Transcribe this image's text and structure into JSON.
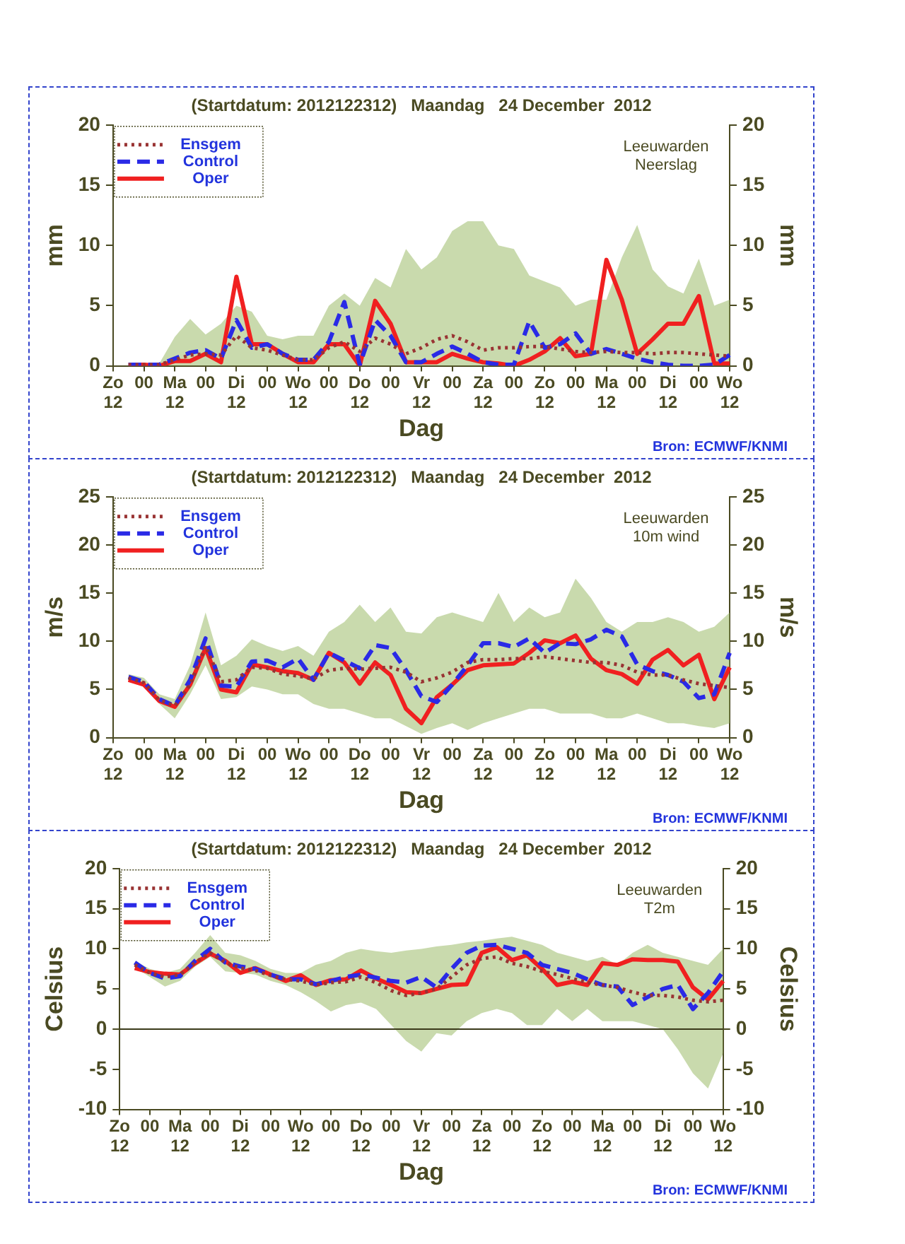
{
  "chart_data": [
    {
      "type": "line",
      "title": "(Startdatum: 2012122312)   Maandag   24 December  2012",
      "xlabel": "Dag",
      "ylabel": "mm",
      "y2label": "mm",
      "annotations": [
        "Leeuwarden",
        "Neerslag",
        "Bron: ECMWF/KNMI"
      ],
      "categories": [
        "Zo\n12",
        null,
        "00",
        null,
        "Ma\n12",
        null,
        "00",
        null,
        "Di\n12",
        null,
        "00",
        null,
        "Wo\n12",
        null,
        "00",
        null,
        "Do\n12",
        null,
        "00",
        null,
        "Vr\n12",
        null,
        "00",
        null,
        "Za\n12",
        null,
        "00",
        null,
        "Zo\n12",
        null,
        "00",
        null,
        "Ma\n12",
        null,
        "00",
        null,
        "Di\n12",
        null,
        "00",
        null,
        "Wo\n12"
      ],
      "ylim": [
        0,
        20
      ],
      "yticks": [
        0,
        5,
        10,
        15,
        20
      ],
      "y2lim": [
        0,
        20
      ],
      "y2ticks": [
        0,
        5,
        10,
        15,
        20
      ],
      "legend": "top left",
      "marker": "none",
      "series": [
        {
          "name": "Ensgem",
          "color": "#993333",
          "line_style": "dotted",
          "values": [
            null,
            0.1,
            0.1,
            0.1,
            0.5,
            0.9,
            1.0,
            0.9,
            2.5,
            1.5,
            1.3,
            0.9,
            0.5,
            0.5,
            1.5,
            2.0,
            1.2,
            2.3,
            1.8,
            1.0,
            1.5,
            2.2,
            2.5,
            2.0,
            1.3,
            1.5,
            1.5,
            1.6,
            1.6,
            1.4,
            1.2,
            1.1,
            1.2,
            1.1,
            1.1,
            1.0,
            1.1,
            1.1,
            1.0,
            0.9,
            0.8
          ],
          "lower": [
            null,
            0,
            0,
            0,
            0,
            0,
            0,
            0,
            0,
            0,
            0,
            0,
            0,
            0,
            0,
            0,
            0,
            0,
            0,
            0,
            0,
            0,
            0,
            0,
            0,
            0,
            0,
            0,
            0,
            0,
            0,
            0,
            0,
            0,
            0,
            0,
            0,
            0,
            0,
            0,
            0
          ],
          "upper": [
            null,
            0.2,
            0.2,
            0.2,
            2.4,
            3.9,
            2.6,
            3.5,
            5.0,
            4.5,
            2.5,
            2.2,
            2.5,
            2.5,
            5.0,
            6.0,
            5.0,
            7.3,
            6.5,
            9.7,
            8.0,
            9.0,
            11.2,
            12.0,
            12.0,
            10.0,
            9.7,
            7.5,
            7.0,
            6.5,
            5.0,
            5.5,
            5.5,
            9.0,
            11.7,
            8.0,
            6.6,
            6.0,
            8.9,
            5.0,
            5.5
          ]
        },
        {
          "name": "Control",
          "color": "#2a2ae6",
          "line_style": "dashed",
          "values": [
            null,
            0.1,
            0.1,
            0.1,
            0.6,
            1.1,
            1.3,
            0.6,
            3.8,
            1.5,
            1.8,
            1.0,
            0.5,
            0.5,
            2.0,
            5.3,
            0.1,
            3.8,
            2.5,
            0.3,
            0.3,
            1.0,
            1.6,
            1.0,
            0.3,
            0.1,
            0.1,
            3.7,
            1.5,
            1.8,
            2.7,
            1.0,
            1.4,
            1.0,
            0.6,
            0.3,
            0.1,
            0,
            0,
            0.1,
            0.9
          ]
        },
        {
          "name": "Oper",
          "color": "#f02020",
          "line_style": "solid",
          "values": [
            null,
            0.1,
            0.1,
            0,
            0.4,
            0.4,
            1.0,
            0.3,
            7.4,
            1.8,
            1.8,
            1.0,
            0.3,
            0.3,
            1.8,
            1.8,
            0,
            5.4,
            3.5,
            0.3,
            0.3,
            0.3,
            1.0,
            0.6,
            0.3,
            0.2,
            0,
            0.5,
            1.2,
            2.3,
            0.8,
            1.0,
            8.8,
            5.5,
            1.0,
            2.2,
            3.5,
            3.5,
            5.8,
            0.2,
            0.2
          ]
        }
      ]
    },
    {
      "type": "line",
      "title": "(Startdatum: 2012122312)   Maandag   24 December  2012",
      "xlabel": "Dag",
      "ylabel": "m/s",
      "y2label": "m/s",
      "annotations": [
        "Leeuwarden",
        "10m wind",
        "Bron: ECMWF/KNMI"
      ],
      "categories": [
        "Zo\n12",
        null,
        "00",
        null,
        "Ma\n12",
        null,
        "00",
        null,
        "Di\n12",
        null,
        "00",
        null,
        "Wo\n12",
        null,
        "00",
        null,
        "Do\n12",
        null,
        "00",
        null,
        "Vr\n12",
        null,
        "00",
        null,
        "Za\n12",
        null,
        "00",
        null,
        "Zo\n12",
        null,
        "00",
        null,
        "Ma\n12",
        null,
        "00",
        null,
        "Di\n12",
        null,
        "00",
        null,
        "Wo\n12"
      ],
      "ylim": [
        0,
        25
      ],
      "yticks": [
        0,
        5,
        10,
        15,
        20,
        25
      ],
      "y2lim": [
        0,
        25
      ],
      "y2ticks": [
        0,
        5,
        10,
        15,
        20,
        25
      ],
      "legend": "top left",
      "marker": "none",
      "series": [
        {
          "name": "Ensgem",
          "color": "#993333",
          "line_style": "dotted",
          "values": [
            null,
            6.2,
            5.7,
            3.9,
            3.3,
            5.5,
            9.5,
            5.8,
            6.0,
            7.3,
            7.2,
            6.6,
            6.4,
            6.1,
            7.0,
            7.2,
            7.1,
            7.2,
            7.3,
            6.8,
            5.8,
            6.2,
            6.8,
            7.8,
            8.1,
            8.1,
            8.2,
            8.2,
            8.4,
            8.2,
            8.0,
            7.8,
            7.8,
            7.5,
            6.8,
            6.5,
            6.5,
            6.0,
            5.6,
            5.4,
            5.2
          ],
          "lower": [
            null,
            5.8,
            5.3,
            3.5,
            2.0,
            4.5,
            7.5,
            4.0,
            4.2,
            5.3,
            5.0,
            4.5,
            4.5,
            3.5,
            3.0,
            3.0,
            2.5,
            2.0,
            2.0,
            1.2,
            0.4,
            1.0,
            1.5,
            0.8,
            1.5,
            2.0,
            2.5,
            3.0,
            3.0,
            2.5,
            2.5,
            2.5,
            2.0,
            2.0,
            2.5,
            2.0,
            1.5,
            1.5,
            1.2,
            1.0,
            1.5
          ],
          "upper": [
            null,
            6.6,
            6.2,
            4.5,
            4.0,
            7.5,
            13.0,
            7.5,
            8.5,
            10.2,
            9.5,
            9.0,
            9.5,
            8.5,
            11.0,
            12.0,
            13.8,
            12.0,
            13.5,
            11.0,
            10.8,
            12.5,
            13.0,
            12.5,
            12.0,
            15.0,
            12.0,
            13.5,
            12.5,
            13.0,
            16.5,
            14.5,
            12.0,
            11.0,
            12.0,
            12.0,
            12.5,
            12.0,
            11.0,
            11.5,
            13.0
          ]
        },
        {
          "name": "Control",
          "color": "#2a2ae6",
          "line_style": "dashed",
          "values": [
            null,
            6.3,
            5.8,
            4.0,
            3.3,
            6.0,
            10.3,
            5.4,
            5.3,
            7.9,
            8.0,
            7.3,
            8.2,
            6.0,
            8.8,
            8.0,
            7.2,
            9.6,
            9.3,
            7.0,
            4.3,
            3.7,
            5.5,
            7.5,
            9.8,
            9.8,
            9.4,
            10.3,
            8.8,
            9.8,
            9.7,
            10.2,
            11.2,
            10.5,
            7.6,
            6.9,
            6.5,
            5.8,
            4.1,
            4.5,
            8.8
          ]
        },
        {
          "name": "Oper",
          "color": "#f02020",
          "line_style": "solid",
          "values": [
            null,
            6.0,
            5.5,
            3.8,
            3.2,
            5.5,
            9.3,
            5.0,
            4.7,
            7.6,
            7.3,
            6.9,
            6.7,
            6.0,
            8.8,
            7.8,
            5.6,
            7.8,
            6.5,
            3.0,
            1.5,
            4.2,
            5.5,
            7.0,
            7.5,
            7.6,
            7.7,
            8.8,
            10.1,
            9.8,
            10.6,
            8.2,
            7.0,
            6.6,
            5.6,
            8.1,
            9.1,
            7.5,
            8.6,
            4.0,
            7.3
          ]
        }
      ]
    },
    {
      "type": "line",
      "title": "(Startdatum: 2012122312)   Maandag   24 December  2012",
      "xlabel": "Dag",
      "ylabel": "Celsius",
      "y2label": "Celsius",
      "annotations": [
        "Leeuwarden",
        "T2m",
        "Bron: ECMWF/KNMI"
      ],
      "categories": [
        "Zo\n12",
        null,
        "00",
        null,
        "Ma\n12",
        null,
        "00",
        null,
        "Di\n12",
        null,
        "00",
        null,
        "Wo\n12",
        null,
        "00",
        null,
        "Do\n12",
        null,
        "00",
        null,
        "Vr\n12",
        null,
        "00",
        null,
        "Za\n12",
        null,
        "00",
        null,
        "Zo\n12",
        null,
        "00",
        null,
        "Ma\n12",
        null,
        "00",
        null,
        "Di\n12",
        null,
        "00",
        null,
        "Wo\n12"
      ],
      "ylim": [
        -10,
        20
      ],
      "yticks": [
        -10,
        -5,
        0,
        5,
        10,
        15,
        20
      ],
      "y2lim": [
        -10,
        20
      ],
      "y2ticks": [
        -10,
        -5,
        0,
        5,
        10,
        15,
        20
      ],
      "ref_lines": [
        {
          "axis": "y",
          "value": 0,
          "label": null,
          "color": "#3a3a1a"
        }
      ],
      "legend": "top left",
      "marker": "none",
      "series": [
        {
          "name": "Ensgem",
          "color": "#993333",
          "line_style": "dotted",
          "values": [
            null,
            8.0,
            7.0,
            6.5,
            6.8,
            8.3,
            9.5,
            8.3,
            7.6,
            7.3,
            6.7,
            6.2,
            6.0,
            5.5,
            5.8,
            5.9,
            6.5,
            5.8,
            4.8,
            4.2,
            4.5,
            5.0,
            6.5,
            8.0,
            8.8,
            9.0,
            8.2,
            7.8,
            7.2,
            6.8,
            6.3,
            5.8,
            5.5,
            5.2,
            4.6,
            4.2,
            4.2,
            4.0,
            3.6,
            3.4,
            3.6
          ],
          "lower": [
            null,
            7.7,
            6.5,
            5.3,
            6.0,
            7.8,
            9.0,
            7.2,
            7.0,
            6.8,
            6.0,
            5.5,
            4.6,
            3.5,
            2.2,
            3.0,
            3.3,
            2.5,
            0.5,
            -1.5,
            -2.8,
            -0.5,
            -0.8,
            1.0,
            2.0,
            2.5,
            2.0,
            0.5,
            0.5,
            2.5,
            1.0,
            2.5,
            1.0,
            1.0,
            1.0,
            0.5,
            0.0,
            -2.5,
            -5.5,
            -7.4,
            -3.0
          ],
          "upper": [
            null,
            8.5,
            7.5,
            7.0,
            7.5,
            9.5,
            11.7,
            9.5,
            9.2,
            8.5,
            7.5,
            7.0,
            7.0,
            8.0,
            8.5,
            9.5,
            10.0,
            9.7,
            9.5,
            9.8,
            10.0,
            10.3,
            10.5,
            10.8,
            11.0,
            11.3,
            11.5,
            11.0,
            10.5,
            9.5,
            9.0,
            8.5,
            9.0,
            8.0,
            9.5,
            10.5,
            9.5,
            9.0,
            8.5,
            8.0,
            10.0
          ]
        },
        {
          "name": "Control",
          "color": "#2a2ae6",
          "line_style": "dashed",
          "values": [
            null,
            8.3,
            7.0,
            6.3,
            6.6,
            8.5,
            10.0,
            8.3,
            7.8,
            7.5,
            6.8,
            6.2,
            6.2,
            5.6,
            6.0,
            6.5,
            6.8,
            6.4,
            6.0,
            5.8,
            6.5,
            5.2,
            7.5,
            9.5,
            10.4,
            10.5,
            10.0,
            9.5,
            8.0,
            7.5,
            7.0,
            6.2,
            5.5,
            5.3,
            3.0,
            4.0,
            5.0,
            5.5,
            2.5,
            4.5,
            7.2
          ]
        },
        {
          "name": "Oper",
          "color": "#f02020",
          "line_style": "solid",
          "values": [
            null,
            7.6,
            7.1,
            6.9,
            6.8,
            8.2,
            9.4,
            8.5,
            7.0,
            7.6,
            6.8,
            6.0,
            6.7,
            5.5,
            6.1,
            6.2,
            7.3,
            6.3,
            5.5,
            4.6,
            4.5,
            5.0,
            5.5,
            5.6,
            9.5,
            10.2,
            8.6,
            9.2,
            7.5,
            5.5,
            5.9,
            5.5,
            8.2,
            8.0,
            8.7,
            8.6,
            8.6,
            8.4,
            5.2,
            3.7,
            6.0
          ]
        }
      ]
    }
  ]
}
